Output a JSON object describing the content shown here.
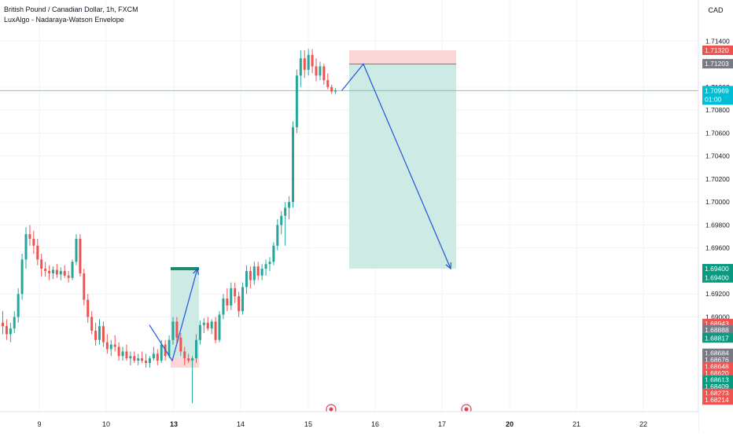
{
  "header": {
    "symbol": "British Pound / Canadian Dollar, 1h, FXCM",
    "indicator": "LuxAlgo - Nadaraya-Watson Envelope",
    "currency": "CAD"
  },
  "colors": {
    "up": "#26a69a",
    "down": "#ef5350",
    "profit_zone": "#cdeae5",
    "loss_zone": "#fbd6d9",
    "arrow": "#2152e0",
    "price_line": "#5fd3d0",
    "grid": "#f0f3fa"
  },
  "chart_data": {
    "type": "candlestick",
    "timeframe": "1h",
    "y_range": [
      1.6812,
      1.7155
    ],
    "x_ticks": [
      "9",
      "10",
      "13",
      "14",
      "15",
      "16",
      "17",
      "20",
      "21",
      "22"
    ],
    "y_ticks": [
      "1.71400",
      "1.71000",
      "1.70800",
      "1.70600",
      "1.70400",
      "1.70200",
      "1.70000",
      "1.69800",
      "1.69600",
      "1.69200",
      "1.69000"
    ],
    "current_price": {
      "price": 1.70969,
      "label": "1.70969",
      "countdown": "01:00"
    },
    "price_labels": [
      {
        "label": "1.71320",
        "price": 1.7132,
        "color": "#ef5350"
      },
      {
        "label": "1.71203",
        "price": 1.71203,
        "color": "#787b86"
      },
      {
        "label": "1.69400",
        "price": 1.6942,
        "color": "#089981"
      },
      {
        "label": "1.69400",
        "price": 1.6934,
        "color": "#089981"
      },
      {
        "label": "1.68943",
        "price": 1.68943,
        "color": "#ef5350"
      },
      {
        "label": "1.68888",
        "price": 1.68888,
        "color": "#787b86"
      },
      {
        "label": "1.68817",
        "price": 1.68817,
        "color": "#089981"
      },
      {
        "label": "1.68684",
        "price": 1.68684,
        "color": "#787b86"
      },
      {
        "label": "1.68676",
        "price": 1.68626,
        "color": "#787b86"
      },
      {
        "label": "1.68648",
        "price": 1.68568,
        "color": "#ef5350"
      },
      {
        "label": "1.68620",
        "price": 1.6851,
        "color": "#ef5350"
      },
      {
        "label": "1.68613",
        "price": 1.68452,
        "color": "#089981"
      },
      {
        "label": "1.68409",
        "price": 1.68394,
        "color": "#089981"
      },
      {
        "label": "1.68273",
        "price": 1.68336,
        "color": "#ef5350"
      },
      {
        "label": "1.68214",
        "price": 1.68278,
        "color": "#ef5350"
      }
    ],
    "candles": [
      [
        1.6895,
        1.6905,
        1.6885,
        1.6892
      ],
      [
        1.6892,
        1.6898,
        1.688,
        1.6885
      ],
      [
        1.6885,
        1.6895,
        1.6878,
        1.689
      ],
      [
        1.689,
        1.6905,
        1.6886,
        1.69
      ],
      [
        1.69,
        1.6925,
        1.6895,
        1.692
      ],
      [
        1.692,
        1.6955,
        1.6915,
        1.695
      ],
      [
        1.695,
        1.6978,
        1.6942,
        1.6972
      ],
      [
        1.6972,
        1.698,
        1.6962,
        1.6968
      ],
      [
        1.6968,
        1.6975,
        1.6955,
        1.6962
      ],
      [
        1.6962,
        1.6968,
        1.6945,
        1.695
      ],
      [
        1.695,
        1.6955,
        1.6935,
        1.6942
      ],
      [
        1.6942,
        1.6948,
        1.6935,
        1.694
      ],
      [
        1.694,
        1.6945,
        1.6932,
        1.6938
      ],
      [
        1.6938,
        1.6944,
        1.6933,
        1.6941
      ],
      [
        1.6941,
        1.6946,
        1.6934,
        1.6937
      ],
      [
        1.6937,
        1.6943,
        1.6932,
        1.694
      ],
      [
        1.694,
        1.6945,
        1.6934,
        1.6936
      ],
      [
        1.6936,
        1.694,
        1.693,
        1.6934
      ],
      [
        1.6934,
        1.695,
        1.6932,
        1.6948
      ],
      [
        1.6948,
        1.6972,
        1.6945,
        1.6968
      ],
      [
        1.6968,
        1.6972,
        1.6935,
        1.6938
      ],
      [
        1.6938,
        1.6942,
        1.691,
        1.6915
      ],
      [
        1.6915,
        1.692,
        1.6895,
        1.69
      ],
      [
        1.69,
        1.6905,
        1.6885,
        1.6888
      ],
      [
        1.6888,
        1.6895,
        1.6875,
        1.688
      ],
      [
        1.688,
        1.6898,
        1.6876,
        1.6892
      ],
      [
        1.6892,
        1.6896,
        1.6874,
        1.6878
      ],
      [
        1.6878,
        1.6885,
        1.6868,
        1.6872
      ],
      [
        1.6872,
        1.688,
        1.6866,
        1.6876
      ],
      [
        1.6876,
        1.6884,
        1.687,
        1.6874
      ],
      [
        1.6874,
        1.6878,
        1.6862,
        1.6866
      ],
      [
        1.6866,
        1.6874,
        1.6862,
        1.687
      ],
      [
        1.687,
        1.6876,
        1.6862,
        1.6864
      ],
      [
        1.6864,
        1.687,
        1.6858,
        1.6866
      ],
      [
        1.6866,
        1.687,
        1.686,
        1.6862
      ],
      [
        1.6862,
        1.6868,
        1.6858,
        1.6864
      ],
      [
        1.6864,
        1.687,
        1.686,
        1.6862
      ],
      [
        1.6862,
        1.6868,
        1.6856,
        1.686
      ],
      [
        1.686,
        1.6866,
        1.6856,
        1.6864
      ],
      [
        1.6864,
        1.6874,
        1.6862,
        1.6868
      ],
      [
        1.6868,
        1.6872,
        1.6858,
        1.6862
      ],
      [
        1.6862,
        1.688,
        1.686,
        1.6876
      ],
      [
        1.6876,
        1.688,
        1.6862,
        1.6866
      ],
      [
        1.6866,
        1.6884,
        1.6864,
        1.688
      ],
      [
        1.688,
        1.69,
        1.6876,
        1.6896
      ],
      [
        1.6896,
        1.69,
        1.6878,
        1.6882
      ],
      [
        1.6882,
        1.6886,
        1.6866,
        1.687
      ],
      [
        1.687,
        1.6874,
        1.6858,
        1.6864
      ],
      [
        1.6864,
        1.6868,
        1.686,
        1.6862
      ],
      [
        1.6862,
        1.6866,
        1.6825,
        1.6864
      ],
      [
        1.6864,
        1.6885,
        1.686,
        1.688
      ],
      [
        1.688,
        1.6897,
        1.6876,
        1.6893
      ],
      [
        1.6893,
        1.6899,
        1.6886,
        1.6895
      ],
      [
        1.6895,
        1.69,
        1.6888,
        1.689
      ],
      [
        1.689,
        1.6898,
        1.6885,
        1.6896
      ],
      [
        1.6896,
        1.69,
        1.6877,
        1.688
      ],
      [
        1.688,
        1.6905,
        1.6878,
        1.6902
      ],
      [
        1.6902,
        1.692,
        1.6898,
        1.6916
      ],
      [
        1.6916,
        1.6925,
        1.6905,
        1.691
      ],
      [
        1.691,
        1.693,
        1.6906,
        1.6925
      ],
      [
        1.6925,
        1.693,
        1.6912,
        1.6918
      ],
      [
        1.6918,
        1.6922,
        1.69,
        1.6905
      ],
      [
        1.6905,
        1.693,
        1.6902,
        1.6926
      ],
      [
        1.6926,
        1.6945,
        1.692,
        1.694
      ],
      [
        1.694,
        1.6944,
        1.6925,
        1.6932
      ],
      [
        1.6932,
        1.6948,
        1.6928,
        1.6944
      ],
      [
        1.6944,
        1.6948,
        1.6932,
        1.6936
      ],
      [
        1.6936,
        1.6946,
        1.6932,
        1.6942
      ],
      [
        1.6942,
        1.695,
        1.6936,
        1.6946
      ],
      [
        1.6946,
        1.6952,
        1.694,
        1.6948
      ],
      [
        1.6948,
        1.6965,
        1.6945,
        1.6962
      ],
      [
        1.6962,
        1.6985,
        1.6958,
        1.698
      ],
      [
        1.698,
        1.6992,
        1.6972,
        1.6988
      ],
      [
        1.6988,
        1.7,
        1.6962,
        1.6995
      ],
      [
        1.6995,
        1.7005,
        1.6985,
        1.7
      ],
      [
        1.7,
        1.707,
        1.6995,
        1.7065
      ],
      [
        1.7065,
        1.7115,
        1.706,
        1.711
      ],
      [
        1.711,
        1.7132,
        1.71,
        1.7125
      ],
      [
        1.7125,
        1.7132,
        1.7108,
        1.7115
      ],
      [
        1.7115,
        1.7133,
        1.711,
        1.7128
      ],
      [
        1.7128,
        1.7133,
        1.7112,
        1.7118
      ],
      [
        1.7118,
        1.7125,
        1.7105,
        1.711
      ],
      [
        1.711,
        1.7122,
        1.7106,
        1.7118
      ],
      [
        1.7118,
        1.712,
        1.7102,
        1.7106
      ],
      [
        1.7106,
        1.7112,
        1.7098,
        1.71
      ],
      [
        1.71,
        1.7102,
        1.7094,
        1.7096
      ],
      [
        1.7096,
        1.7099,
        1.7094,
        1.7097
      ]
    ],
    "positions": [
      {
        "type": "long",
        "entry": 1.6865,
        "stop": 1.6858,
        "target": 1.6942
      },
      {
        "type": "short",
        "entry": 1.712,
        "stop": 1.7132,
        "target": 1.6942
      }
    ],
    "event_markers": 2
  }
}
